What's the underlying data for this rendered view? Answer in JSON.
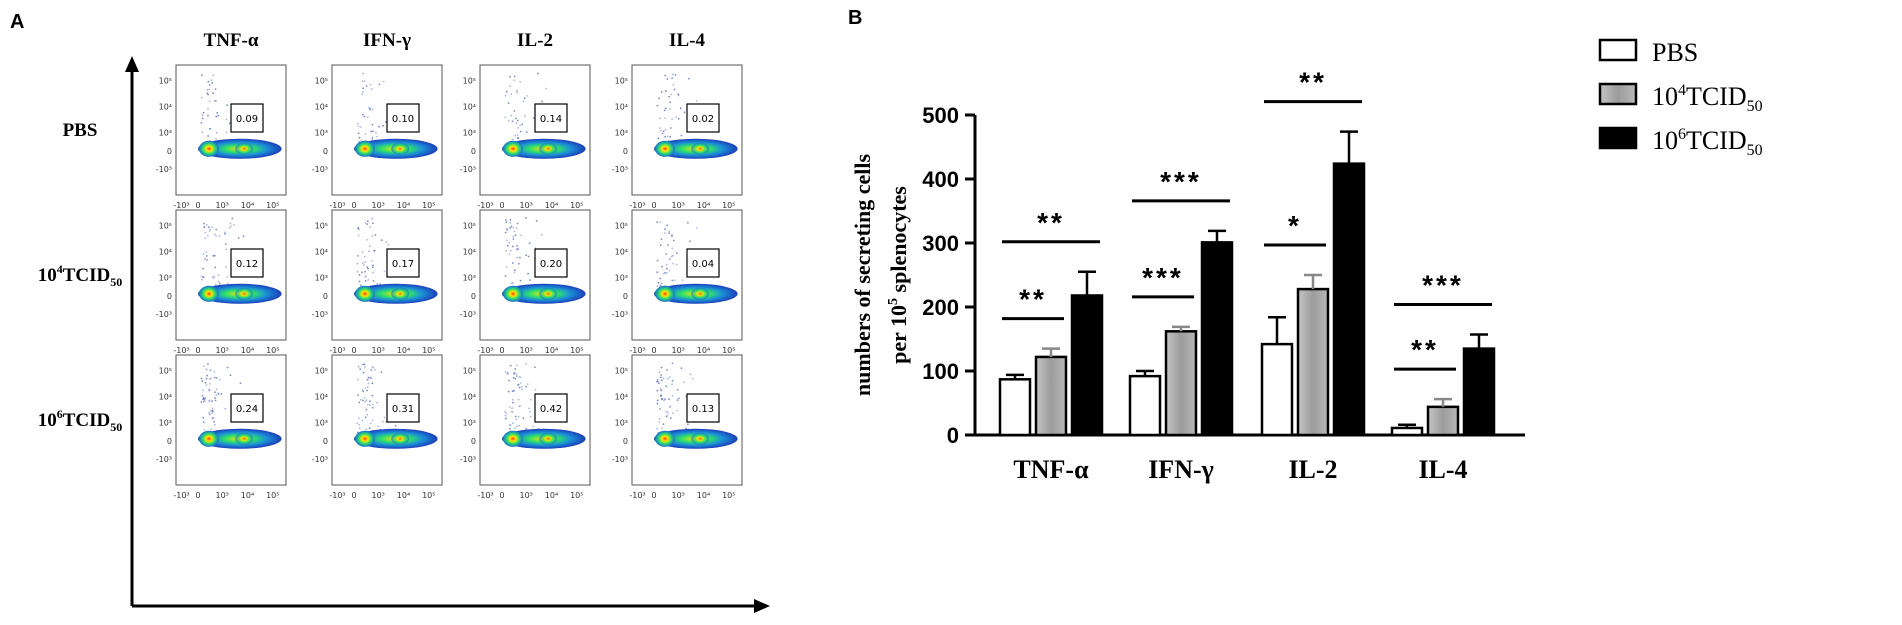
{
  "panels": {
    "a": {
      "label": "A"
    },
    "b": {
      "label": "B"
    }
  },
  "flow": {
    "columns": [
      "TNF-α",
      "IFN-γ",
      "IL-2",
      "IL-4"
    ],
    "rows": [
      {
        "label": "PBS",
        "sub": "",
        "sup": "",
        "values": [
          "0.09",
          "0.10",
          "0.14",
          "0.02"
        ]
      },
      {
        "label": "10",
        "sup": "4",
        "base": "TCID",
        "sub": "50",
        "values": [
          "0.12",
          "0.17",
          "0.20",
          "0.04"
        ]
      },
      {
        "label": "10",
        "sup": "6",
        "base": "TCID",
        "sub": "50",
        "values": [
          "0.24",
          "0.31",
          "0.42",
          "0.13"
        ]
      }
    ],
    "y_ticks": [
      "10⁵",
      "10⁴",
      "10³",
      "0",
      "-10³"
    ],
    "x_ticks": [
      "-10³",
      "0",
      "10³",
      "10⁴",
      "10⁵"
    ]
  },
  "chart_data": {
    "type": "bar",
    "title": "",
    "ylabel_line1": "numbers of secreting cells",
    "ylabel_line2_pre": "per 10",
    "ylabel_line2_sup": "5",
    "ylabel_line2_post": " splenocytes",
    "ylim": [
      0,
      500
    ],
    "yticks": [
      0,
      100,
      200,
      300,
      400,
      500
    ],
    "categories": [
      "TNF-α",
      "IFN-γ",
      "IL-2",
      "IL-4"
    ],
    "series": [
      {
        "name": "PBS",
        "name_base": "PBS",
        "name_sup": "",
        "name_sub": "",
        "color": "#ffffff",
        "values": [
          87,
          92,
          142,
          11
        ],
        "errors": [
          7,
          8,
          42,
          5
        ]
      },
      {
        "name": "10^4TCID50",
        "name_base": "10",
        "name_sup": "4",
        "name_mid": "TCID",
        "name_sub": "50",
        "color": "#a8a8a8",
        "values": [
          122,
          162,
          228,
          44
        ],
        "errors": [
          13,
          7,
          22,
          12
        ]
      },
      {
        "name": "10^6TCID50",
        "name_base": "10",
        "name_sup": "6",
        "name_mid": "TCID",
        "name_sub": "50",
        "color": "#000000",
        "values": [
          218,
          301,
          424,
          135
        ],
        "errors": [
          37,
          18,
          50,
          22
        ]
      }
    ],
    "significance": [
      {
        "group": 0,
        "from": 0,
        "to": 1,
        "label": "**"
      },
      {
        "group": 0,
        "from": 0,
        "to": 2,
        "label": "**"
      },
      {
        "group": 1,
        "from": 0,
        "to": 1,
        "label": "***"
      },
      {
        "group": 1,
        "from": 0,
        "to": 2,
        "label": "***"
      },
      {
        "group": 2,
        "from": 0,
        "to": 1,
        "label": "*"
      },
      {
        "group": 2,
        "from": 0,
        "to": 2,
        "label": "**"
      },
      {
        "group": 3,
        "from": 0,
        "to": 1,
        "label": "**"
      },
      {
        "group": 3,
        "from": 0,
        "to": 2,
        "label": "***"
      }
    ]
  }
}
